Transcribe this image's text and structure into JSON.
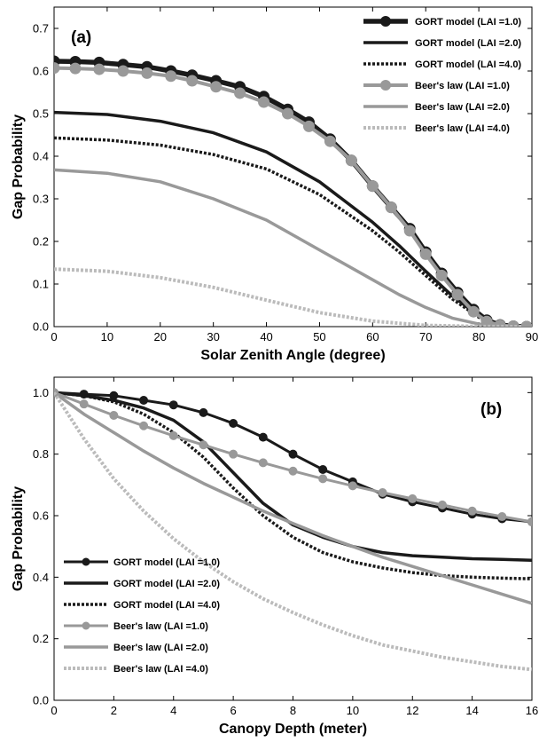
{
  "chart_data": [
    {
      "type": "line",
      "panel_label": "(a)",
      "xlabel": "Solar Zenith Angle (degree)",
      "ylabel": "Gap Probability",
      "xlim": [
        0,
        90
      ],
      "ylim": [
        0,
        0.75
      ],
      "xticks": [
        0,
        10,
        20,
        30,
        40,
        50,
        60,
        70,
        80,
        90
      ],
      "yticks": [
        0,
        0.1,
        0.2,
        0.3,
        0.4,
        0.5,
        0.6,
        0.7
      ],
      "grid": false,
      "legend_position": "top-right",
      "series": [
        {
          "name": "GORT model (LAI =1.0)",
          "color": "#1a1a1a",
          "dash": "solid",
          "width": 5.5,
          "marker": "circle",
          "x": [
            0,
            4,
            8.5,
            13,
            17.5,
            22,
            26,
            30.5,
            35,
            39.5,
            44,
            48,
            52,
            56,
            60,
            63.5,
            67,
            70,
            73,
            76,
            79,
            81.5,
            84,
            86.5,
            89
          ],
          "y": [
            0.623,
            0.622,
            0.62,
            0.615,
            0.61,
            0.6,
            0.59,
            0.577,
            0.563,
            0.54,
            0.51,
            0.48,
            0.44,
            0.39,
            0.33,
            0.28,
            0.23,
            0.175,
            0.125,
            0.08,
            0.04,
            0.015,
            0.004,
            0.001,
            0
          ]
        },
        {
          "name": "GORT model (LAI =2.0)",
          "color": "#1a1a1a",
          "dash": "solid",
          "width": 3.5,
          "marker": "none",
          "x": [
            0,
            10,
            20,
            30,
            40,
            50,
            60,
            65,
            70,
            75,
            80,
            83,
            85,
            88
          ],
          "y": [
            0.503,
            0.498,
            0.482,
            0.455,
            0.41,
            0.34,
            0.245,
            0.19,
            0.13,
            0.072,
            0.025,
            0.008,
            0.002,
            0
          ]
        },
        {
          "name": "GORT model (LAI =4.0)",
          "color": "#1a1a1a",
          "dash": "dot",
          "width": 3.5,
          "marker": "none",
          "x": [
            0,
            10,
            20,
            30,
            40,
            50,
            60,
            65,
            70,
            75,
            80,
            83,
            85,
            88
          ],
          "y": [
            0.443,
            0.438,
            0.426,
            0.404,
            0.37,
            0.31,
            0.225,
            0.175,
            0.12,
            0.065,
            0.022,
            0.006,
            0.001,
            0
          ]
        },
        {
          "name": "Beer's law (LAI =1.0)",
          "color": "#999999",
          "dash": "solid",
          "width": 4.0,
          "marker": "circle",
          "x": [
            0,
            4,
            8.5,
            13,
            17.5,
            22,
            26,
            30.5,
            35,
            39.5,
            44,
            48,
            52,
            56,
            60,
            63.5,
            67,
            70,
            73,
            76,
            79,
            81.5,
            84,
            86.5,
            89
          ],
          "y": [
            0.607,
            0.606,
            0.604,
            0.6,
            0.595,
            0.588,
            0.577,
            0.563,
            0.548,
            0.527,
            0.5,
            0.47,
            0.435,
            0.39,
            0.33,
            0.28,
            0.225,
            0.17,
            0.12,
            0.075,
            0.035,
            0.012,
            0.003,
            0.001,
            0
          ]
        },
        {
          "name": "Beer's law (LAI =2.0)",
          "color": "#999999",
          "dash": "solid",
          "width": 3.5,
          "marker": "none",
          "x": [
            0,
            10,
            20,
            30,
            40,
            50,
            60,
            65,
            70,
            75,
            80,
            85,
            88
          ],
          "y": [
            0.368,
            0.36,
            0.34,
            0.3,
            0.25,
            0.18,
            0.11,
            0.075,
            0.045,
            0.02,
            0.006,
            0.001,
            0
          ]
        },
        {
          "name": "Beer's law (LAI =4.0)",
          "color": "#bbbbbb",
          "dash": "dot",
          "width": 4.0,
          "marker": "none",
          "x": [
            0,
            10,
            20,
            30,
            40,
            50,
            60,
            70,
            80,
            88
          ],
          "y": [
            0.135,
            0.13,
            0.115,
            0.092,
            0.062,
            0.033,
            0.013,
            0.003,
            0.0005,
            0
          ]
        }
      ]
    },
    {
      "type": "line",
      "panel_label": "(b)",
      "xlabel": "Canopy Depth   (meter)",
      "ylabel": "Gap Probability",
      "xlim": [
        0,
        16
      ],
      "ylim": [
        0,
        1.05
      ],
      "xticks": [
        0,
        2,
        4,
        6,
        8,
        10,
        12,
        14,
        16
      ],
      "yticks": [
        0,
        0.2,
        0.4,
        0.6,
        0.8,
        1.0
      ],
      "grid": false,
      "legend_position": "bottom-left",
      "series": [
        {
          "name": "GORT model (LAI =1.0)",
          "color": "#1a1a1a",
          "dash": "solid",
          "width": 3.0,
          "marker": "circle",
          "x": [
            0,
            1,
            2,
            3,
            4,
            5,
            6,
            7,
            8,
            9,
            10,
            11,
            12,
            13,
            14,
            15,
            16
          ],
          "y": [
            1.0,
            0.995,
            0.99,
            0.975,
            0.96,
            0.935,
            0.9,
            0.855,
            0.8,
            0.75,
            0.71,
            0.67,
            0.645,
            0.625,
            0.605,
            0.59,
            0.58
          ]
        },
        {
          "name": "GORT model (LAI =2.0)",
          "color": "#1a1a1a",
          "dash": "solid",
          "width": 3.5,
          "marker": "none",
          "x": [
            0,
            1,
            2,
            3,
            4,
            5,
            6,
            7,
            8,
            9,
            10,
            11,
            12,
            13,
            14,
            15,
            16
          ],
          "y": [
            1.0,
            0.99,
            0.975,
            0.95,
            0.91,
            0.84,
            0.74,
            0.64,
            0.57,
            0.53,
            0.5,
            0.48,
            0.47,
            0.465,
            0.46,
            0.458,
            0.455
          ]
        },
        {
          "name": "GORT model (LAI =4.0)",
          "color": "#1a1a1a",
          "dash": "dot",
          "width": 3.5,
          "marker": "none",
          "x": [
            0,
            1,
            2,
            3,
            4,
            5,
            6,
            7,
            8,
            9,
            10,
            11,
            12,
            13,
            14,
            15,
            16
          ],
          "y": [
            1.0,
            0.99,
            0.97,
            0.93,
            0.87,
            0.79,
            0.69,
            0.6,
            0.53,
            0.48,
            0.45,
            0.43,
            0.415,
            0.405,
            0.4,
            0.397,
            0.395
          ]
        },
        {
          "name": "Beer's law (LAI =1.0)",
          "color": "#999999",
          "dash": "solid",
          "width": 3.0,
          "marker": "circle",
          "x": [
            0,
            1,
            2,
            3,
            4,
            5,
            6,
            7,
            8,
            9,
            10,
            11,
            12,
            13,
            14,
            15,
            16
          ],
          "y": [
            1.0,
            0.963,
            0.926,
            0.892,
            0.86,
            0.83,
            0.8,
            0.772,
            0.745,
            0.72,
            0.697,
            0.675,
            0.655,
            0.635,
            0.615,
            0.597,
            0.58
          ]
        },
        {
          "name": "Beer's law (LAI =2.0)",
          "color": "#999999",
          "dash": "solid",
          "width": 3.5,
          "marker": "none",
          "x": [
            0,
            1,
            2,
            3,
            4,
            5,
            6,
            7,
            8,
            9,
            10,
            11,
            12,
            13,
            14,
            15,
            16
          ],
          "y": [
            1.0,
            0.93,
            0.87,
            0.81,
            0.755,
            0.705,
            0.66,
            0.615,
            0.575,
            0.535,
            0.5,
            0.465,
            0.435,
            0.405,
            0.375,
            0.345,
            0.315
          ]
        },
        {
          "name": "Beer's law (LAI =4.0)",
          "color": "#bbbbbb",
          "dash": "dot",
          "width": 4.0,
          "marker": "none",
          "x": [
            0,
            1,
            2,
            3,
            4,
            5,
            6,
            7,
            8,
            9,
            10,
            11,
            12,
            13,
            14,
            15,
            16
          ],
          "y": [
            1.0,
            0.85,
            0.72,
            0.615,
            0.525,
            0.45,
            0.385,
            0.33,
            0.285,
            0.245,
            0.21,
            0.18,
            0.16,
            0.14,
            0.125,
            0.11,
            0.1
          ]
        }
      ]
    }
  ]
}
